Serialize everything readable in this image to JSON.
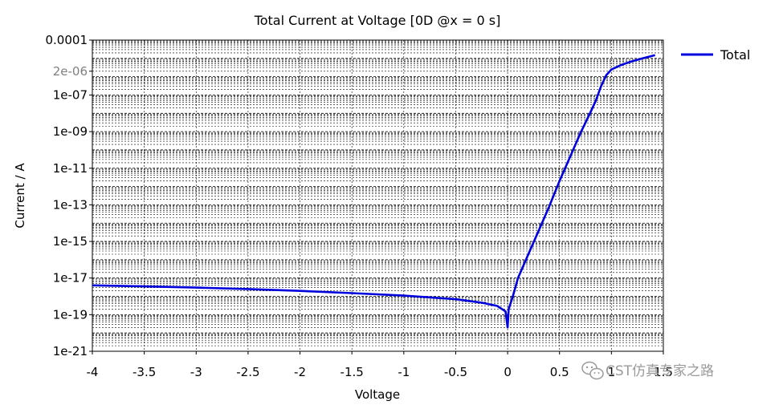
{
  "chart_data": {
    "type": "line",
    "title": "Total Current at Voltage [0D @x = 0 s]",
    "xlabel": "Voltage",
    "ylabel": "Current / A",
    "xlim": [
      -4,
      1.5
    ],
    "ylim": [
      1e-21,
      0.0001
    ],
    "yscale": "log",
    "grid": true,
    "legend_position": "top-right",
    "x_ticks": [
      "-4",
      "-3.5",
      "-3",
      "-2.5",
      "-2",
      "-1.5",
      "-1",
      "-0.5",
      "0",
      "0.5",
      "1",
      "1.5"
    ],
    "y_ticks": [
      {
        "label": "0.0001",
        "value": 0.0001
      },
      {
        "label": "2e-06",
        "value": 2e-06
      },
      {
        "label": "1e-07",
        "value": 1e-07
      },
      {
        "label": "1e-09",
        "value": 1e-09
      },
      {
        "label": "1e-11",
        "value": 1e-11
      },
      {
        "label": "1e-13",
        "value": 1e-13
      },
      {
        "label": "1e-15",
        "value": 1e-15
      },
      {
        "label": "1e-17",
        "value": 1e-17
      },
      {
        "label": "1e-19",
        "value": 1e-19
      },
      {
        "label": "1e-21",
        "value": 1e-21
      }
    ],
    "series": [
      {
        "name": "Total",
        "color": "#0000dd",
        "x": [
          -4,
          -3.5,
          -3,
          -2.5,
          -2,
          -1.5,
          -1,
          -0.5,
          -0.25,
          -0.1,
          -0.02,
          0,
          0.01,
          0.05,
          0.1,
          0.2,
          0.3,
          0.4,
          0.5,
          0.6,
          0.7,
          0.8,
          0.85,
          0.9,
          0.95,
          1.0,
          1.1,
          1.2,
          1.3,
          1.42
        ],
        "y": [
          4e-18,
          3.5e-18,
          3e-18,
          2.5e-18,
          2e-18,
          1.5e-18,
          1.1e-18,
          7e-19,
          4.5e-19,
          3e-19,
          1.5e-19,
          2e-20,
          2e-19,
          1e-18,
          1e-17,
          2e-16,
          4e-15,
          8e-14,
          2e-12,
          4e-11,
          8e-10,
          1.2e-08,
          5e-08,
          3e-07,
          1.2e-06,
          2.5e-06,
          4.5e-06,
          7e-06,
          1e-05,
          1.5e-05
        ]
      }
    ]
  },
  "watermark": {
    "icon": "wechat-icon",
    "text": "CST仿真专家之路"
  }
}
